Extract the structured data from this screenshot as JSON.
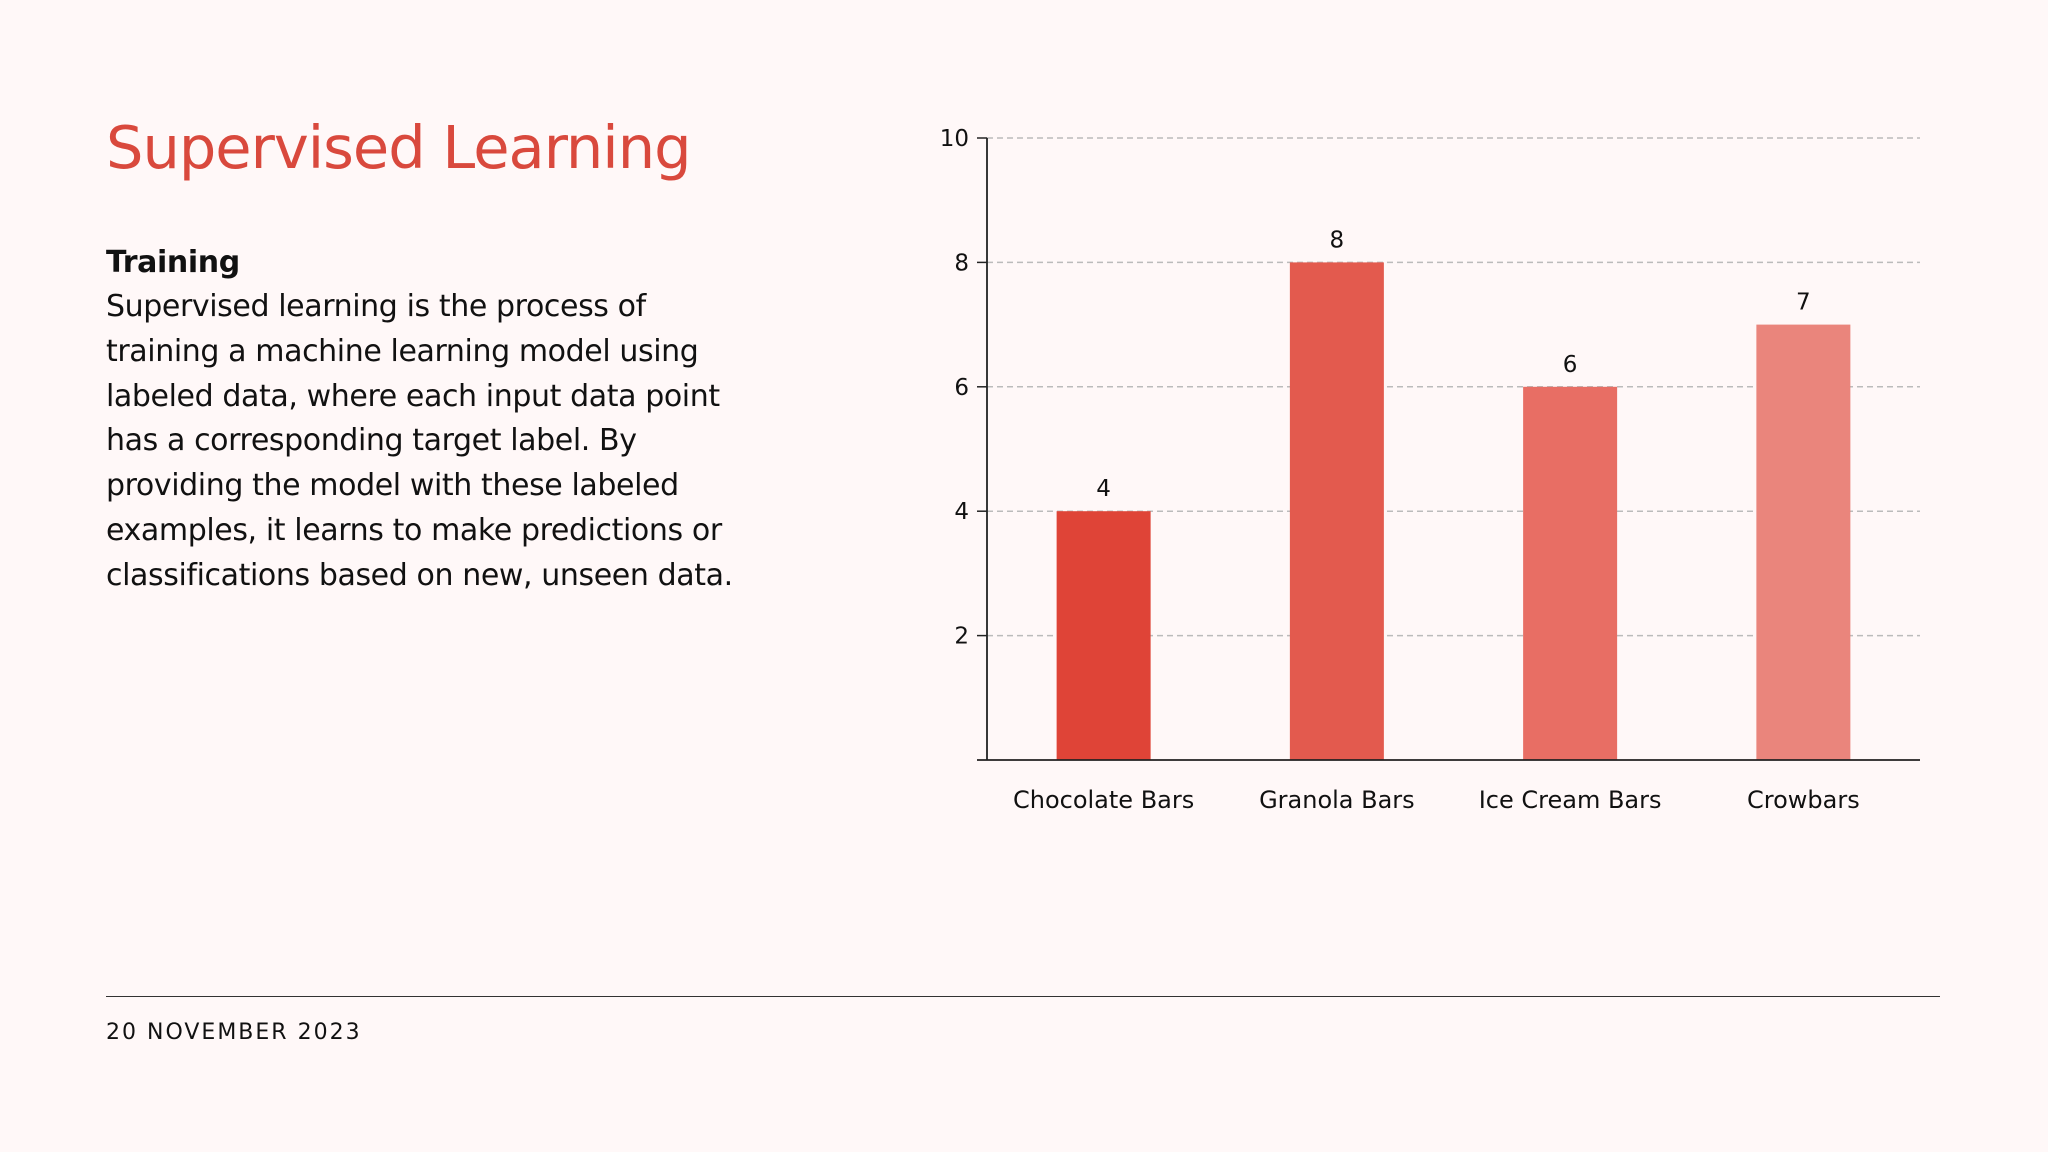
{
  "slide": {
    "title": "Supervised Learning",
    "subheading": "Training",
    "body": "Supervised learning is the process of training a machine learning model using labeled data, where each input data point has a corresponding target label. By providing the model with these labeled examples, it learns to make predictions or classifications based on new, unseen data.",
    "footer_date": "20 NOVEMBER 2023"
  },
  "colors": {
    "background": "#fff8f8",
    "accent": "#d9493d",
    "bars": [
      "#df4437",
      "#e35a4e",
      "#e86e64",
      "#ea857c"
    ],
    "grid": "#bbbbbb",
    "axis": "#222222"
  },
  "chart_data": {
    "type": "bar",
    "categories": [
      "Chocolate Bars",
      "Granola Bars",
      "Ice Cream Bars",
      "Crowbars"
    ],
    "values": [
      4,
      8,
      6,
      7
    ],
    "data_labels": [
      "4",
      "8",
      "6",
      "7"
    ],
    "yticks": [
      2,
      4,
      6,
      8,
      10
    ],
    "ytick_labels": [
      "2",
      "4",
      "6",
      "8",
      "10"
    ],
    "ylim": [
      0,
      10
    ],
    "grid": true,
    "grid_style": "dashed",
    "legend": false
  }
}
